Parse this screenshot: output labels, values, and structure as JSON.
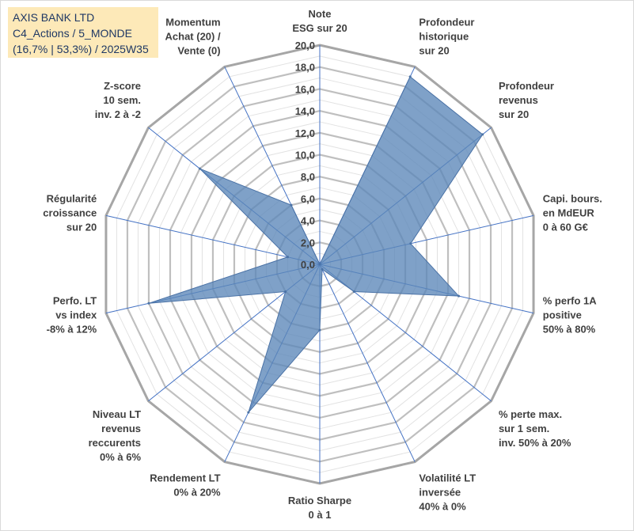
{
  "header": {
    "line1": "AXIS BANK LTD",
    "line2": "C4_Actions / 5_MONDE",
    "line3": "(16,7% | 53,3%) / 2025W35"
  },
  "colors": {
    "fill": "#5b86b9",
    "fill_opacity": 0.78,
    "spoke": "#4472c4",
    "ring": "#bfbfbf",
    "ring_outer": "#a6a6a6",
    "header_bg": "#fde9b8"
  },
  "chart_data": {
    "type": "radar",
    "rmin": 0,
    "rmax": 20,
    "major_step": 2,
    "minor_step": 1,
    "tick_labels": [
      "0,0",
      "2,0",
      "4,0",
      "6,0",
      "8,0",
      "10,0",
      "12,0",
      "14,0",
      "16,0",
      "18,0",
      "20,0"
    ],
    "axes": [
      {
        "label": [
          "Note",
          "ESG sur 20"
        ],
        "value": 0
      },
      {
        "label": [
          "Profondeur",
          "historique",
          "sur 20"
        ],
        "value": 19
      },
      {
        "label": [
          "Profondeur",
          "revenus",
          "sur 20"
        ],
        "value": 19
      },
      {
        "label": [
          "Capi. bours.",
          "en MdEUR",
          "0 à 60 G€"
        ],
        "value": 8.5
      },
      {
        "label": [
          "% perfo 1A",
          "positive",
          "50% à 80%"
        ],
        "value": 13
      },
      {
        "label": [
          "% perte max.",
          "sur 1 sem.",
          "inv. 50% à 20%"
        ],
        "value": 4
      },
      {
        "label": [
          "Volatilité LT",
          "inversée",
          "40% à 0%"
        ],
        "value": 0.5
      },
      {
        "label": [
          "Ratio Sharpe",
          "0 à 1"
        ],
        "value": 6
      },
      {
        "label": [
          "Rendement LT",
          "0% à 20%"
        ],
        "value": 15
      },
      {
        "label": [
          "Niveau LT",
          "revenus",
          "reccurents",
          "0% à 6%"
        ],
        "value": 4
      },
      {
        "label": [
          "Perfo. LT",
          "vs index",
          "-8% à 12%"
        ],
        "value": 16
      },
      {
        "label": [
          "Régularité",
          "croissance",
          "sur 20"
        ],
        "value": 3
      },
      {
        "label": [
          "Z-score",
          "10 sem.",
          "inv. 2 à -2"
        ],
        "value": 14
      },
      {
        "label": [
          "Momentum",
          "Achat (20) /",
          "Vente (0)"
        ],
        "value": 6
      }
    ]
  }
}
